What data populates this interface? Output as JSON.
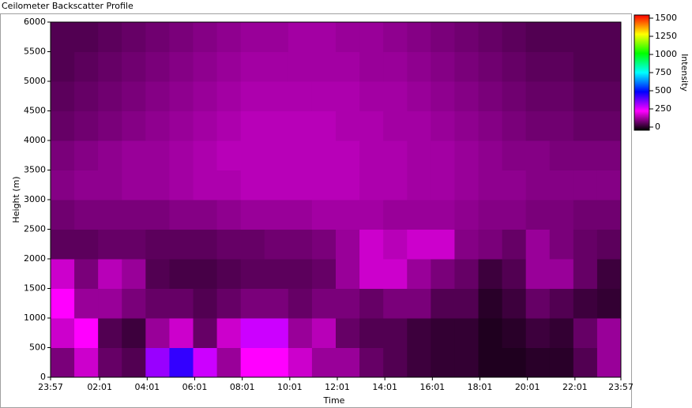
{
  "chart_data": {
    "type": "heatmap",
    "title": "Ceilometer Backscatter Profile",
    "x_label": "Time",
    "y_label": "Height (m)",
    "colorbar_label": "Intensity",
    "xlim": [
      0,
      1440
    ],
    "xticks": [
      {
        "value": 0,
        "label": "23:57"
      },
      {
        "value": 124,
        "label": "02:01"
      },
      {
        "value": 244,
        "label": "04:01"
      },
      {
        "value": 364,
        "label": "06:01"
      },
      {
        "value": 484,
        "label": "08:01"
      },
      {
        "value": 604,
        "label": "10:01"
      },
      {
        "value": 724,
        "label": "12:01"
      },
      {
        "value": 844,
        "label": "14:01"
      },
      {
        "value": 964,
        "label": "16:01"
      },
      {
        "value": 1084,
        "label": "18:01"
      },
      {
        "value": 1204,
        "label": "20:01"
      },
      {
        "value": 1324,
        "label": "22:01"
      },
      {
        "value": 1440,
        "label": "23:57"
      }
    ],
    "ylim": [
      0,
      6000
    ],
    "yticks": [
      0,
      500,
      1000,
      1500,
      2000,
      2500,
      3000,
      3500,
      4000,
      4500,
      5000,
      5500,
      6000
    ],
    "x": [
      30,
      90,
      150,
      210,
      270,
      330,
      390,
      450,
      510,
      570,
      630,
      690,
      750,
      810,
      870,
      930,
      990,
      1050,
      1110,
      1170,
      1230,
      1290,
      1350,
      1410
    ],
    "y": [
      250,
      750,
      1250,
      1750,
      2250,
      2750,
      3250,
      3750,
      4250,
      4750,
      5250,
      5750
    ],
    "z": [
      [
        120,
        200,
        100,
        80,
        350,
        450,
        300,
        150,
        250,
        250,
        200,
        150,
        150,
        100,
        80,
        60,
        50,
        50,
        30,
        30,
        40,
        40,
        80,
        150
      ],
      [
        200,
        250,
        80,
        60,
        150,
        200,
        100,
        200,
        300,
        300,
        150,
        180,
        100,
        80,
        80,
        60,
        50,
        50,
        30,
        40,
        60,
        50,
        100,
        150
      ],
      [
        250,
        150,
        150,
        120,
        100,
        100,
        80,
        100,
        120,
        120,
        100,
        120,
        120,
        100,
        120,
        120,
        80,
        80,
        40,
        60,
        100,
        80,
        60,
        50
      ],
      [
        200,
        120,
        180,
        150,
        80,
        70,
        70,
        80,
        90,
        90,
        90,
        100,
        150,
        200,
        200,
        150,
        120,
        100,
        60,
        80,
        150,
        150,
        100,
        60
      ],
      [
        90,
        90,
        100,
        100,
        90,
        90,
        90,
        100,
        100,
        110,
        110,
        120,
        150,
        200,
        180,
        200,
        200,
        130,
        120,
        100,
        150,
        120,
        100,
        90
      ],
      [
        110,
        120,
        120,
        120,
        120,
        130,
        130,
        140,
        150,
        150,
        150,
        160,
        160,
        160,
        150,
        150,
        150,
        140,
        130,
        130,
        120,
        120,
        110,
        110
      ],
      [
        130,
        140,
        140,
        150,
        150,
        160,
        170,
        170,
        180,
        180,
        180,
        180,
        180,
        170,
        170,
        160,
        160,
        150,
        140,
        140,
        130,
        130,
        130,
        130
      ],
      [
        120,
        130,
        140,
        150,
        150,
        160,
        170,
        180,
        180,
        180,
        180,
        180,
        180,
        170,
        170,
        160,
        160,
        150,
        140,
        130,
        130,
        120,
        120,
        120
      ],
      [
        100,
        110,
        120,
        130,
        140,
        150,
        160,
        170,
        180,
        180,
        180,
        180,
        170,
        170,
        160,
        160,
        150,
        140,
        130,
        120,
        110,
        110,
        100,
        100
      ],
      [
        90,
        100,
        110,
        120,
        130,
        140,
        150,
        160,
        170,
        170,
        170,
        170,
        170,
        160,
        160,
        150,
        140,
        130,
        120,
        110,
        100,
        100,
        90,
        90
      ],
      [
        80,
        90,
        100,
        110,
        120,
        130,
        140,
        150,
        160,
        160,
        160,
        160,
        160,
        150,
        150,
        140,
        130,
        120,
        110,
        100,
        90,
        90,
        80,
        80
      ],
      [
        80,
        80,
        90,
        100,
        110,
        120,
        130,
        140,
        150,
        150,
        160,
        160,
        150,
        150,
        140,
        130,
        120,
        110,
        100,
        90,
        80,
        80,
        80,
        80
      ]
    ],
    "colorbar_lim": [
      0,
      1500
    ],
    "colorbar_ticks": [
      0,
      250,
      500,
      750,
      1000,
      1250,
      1500
    ],
    "colorbar_colors": [
      "#000000",
      "#ff00ff",
      "#0000ff",
      "#00ffff",
      "#00ff00",
      "#ffff00",
      "#ff0000"
    ]
  }
}
